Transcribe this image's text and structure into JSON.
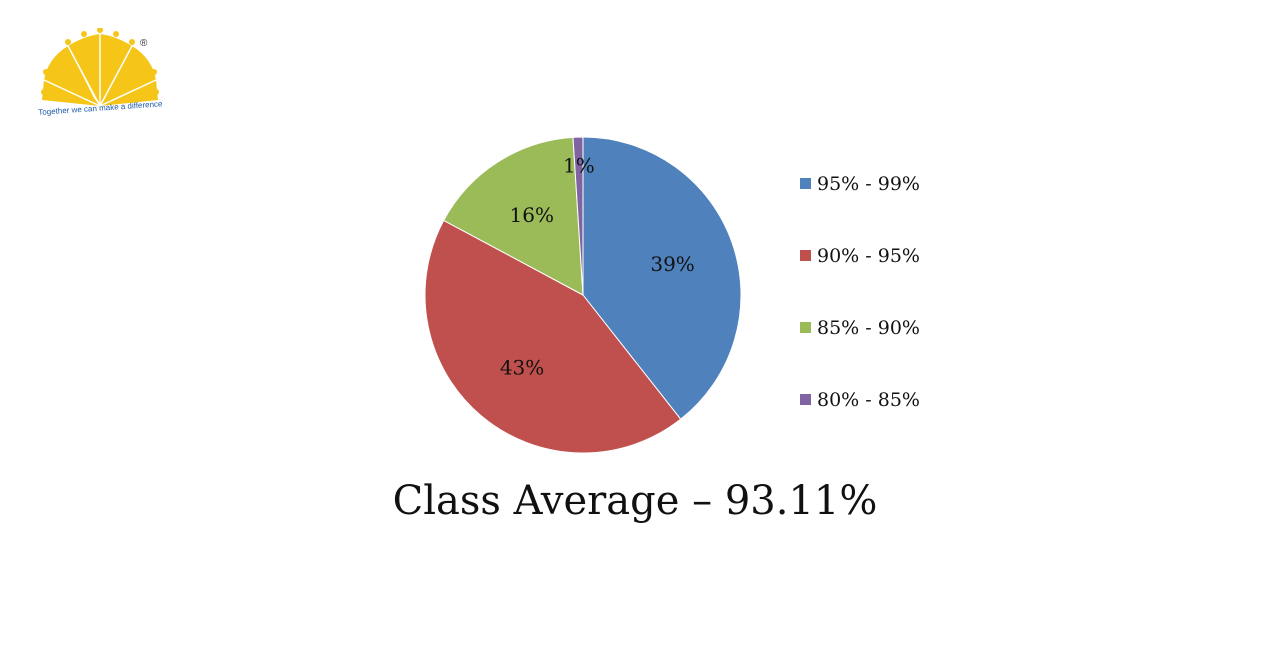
{
  "logo": {
    "tagline": "Together we can make a difference",
    "registered_mark": "®",
    "color": "#f5c518",
    "tagline_color": "#1f5aa8"
  },
  "chart_data": {
    "type": "pie",
    "title": "Class Average – 93.11%",
    "categories": [
      "95% - 99%",
      "90% - 95%",
      "85% - 90%",
      "80% - 85%"
    ],
    "values": [
      39,
      43,
      16,
      1
    ],
    "labels": [
      "39%",
      "43%",
      "16%",
      "1%"
    ],
    "colors": [
      "#4f81bd",
      "#c0504d",
      "#9bbb59",
      "#8064a2"
    ],
    "legend_position": "right"
  }
}
